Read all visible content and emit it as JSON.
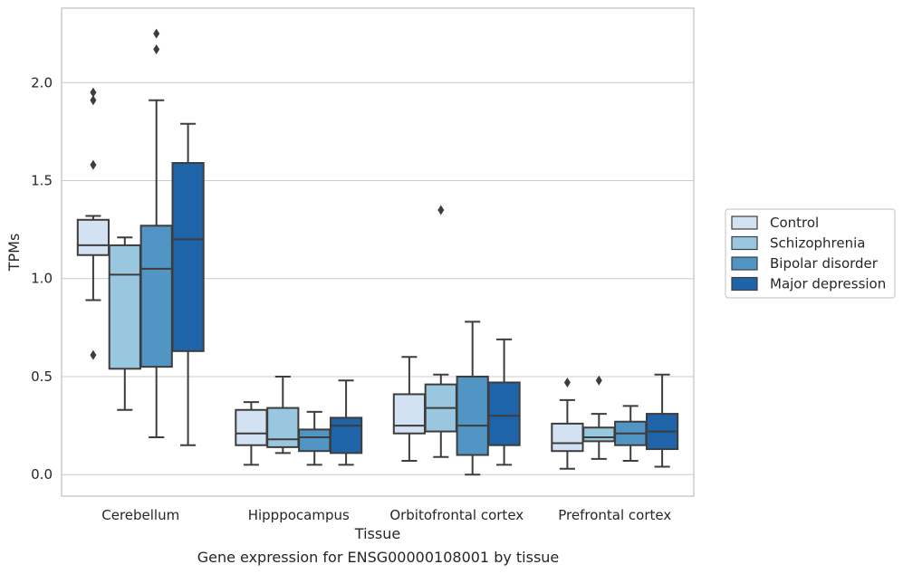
{
  "caption": "Gene expression for ENSG00000108001 by tissue",
  "chart_data": {
    "type": "box",
    "title": "",
    "xlabel": "Tissue",
    "ylabel": "TPMs",
    "ylim": [
      -0.11,
      2.38
    ],
    "yticks": [
      0.0,
      0.5,
      1.0,
      1.5,
      2.0
    ],
    "ytick_labels": [
      "0.0",
      "0.5",
      "1.0",
      "1.5",
      "2.0"
    ],
    "grid": "horizontal",
    "legend_position": "right",
    "categories": [
      "Cerebellum",
      "Hipppocampus",
      "Orbitofrontal cortex",
      "Prefrontal cortex"
    ],
    "series": [
      {
        "name": "Control",
        "color": "#d2e2f2",
        "boxes": [
          {
            "q1": 1.12,
            "median": 1.17,
            "q3": 1.3,
            "whisker_low": 0.89,
            "whisker_high": 1.32,
            "outliers": [
              1.95,
              1.91,
              1.58,
              0.61
            ]
          },
          {
            "q1": 0.15,
            "median": 0.21,
            "q3": 0.33,
            "whisker_low": 0.05,
            "whisker_high": 0.37,
            "outliers": []
          },
          {
            "q1": 0.21,
            "median": 0.25,
            "q3": 0.41,
            "whisker_low": 0.07,
            "whisker_high": 0.6,
            "outliers": []
          },
          {
            "q1": 0.12,
            "median": 0.16,
            "q3": 0.26,
            "whisker_low": 0.03,
            "whisker_high": 0.38,
            "outliers": [
              0.47
            ]
          }
        ]
      },
      {
        "name": "Schizophrenia",
        "color": "#9ac7e0",
        "boxes": [
          {
            "q1": 0.54,
            "median": 1.02,
            "q3": 1.17,
            "whisker_low": 0.33,
            "whisker_high": 1.21,
            "outliers": []
          },
          {
            "q1": 0.14,
            "median": 0.18,
            "q3": 0.34,
            "whisker_low": 0.11,
            "whisker_high": 0.5,
            "outliers": []
          },
          {
            "q1": 0.22,
            "median": 0.34,
            "q3": 0.46,
            "whisker_low": 0.09,
            "whisker_high": 0.51,
            "outliers": [
              1.35
            ]
          },
          {
            "q1": 0.17,
            "median": 0.19,
            "q3": 0.24,
            "whisker_low": 0.08,
            "whisker_high": 0.31,
            "outliers": [
              0.48
            ]
          }
        ]
      },
      {
        "name": "Bipolar disorder",
        "color": "#5195c5",
        "boxes": [
          {
            "q1": 0.55,
            "median": 1.05,
            "q3": 1.27,
            "whisker_low": 0.19,
            "whisker_high": 1.91,
            "outliers": [
              2.25,
              2.17
            ]
          },
          {
            "q1": 0.12,
            "median": 0.19,
            "q3": 0.23,
            "whisker_low": 0.05,
            "whisker_high": 0.32,
            "outliers": []
          },
          {
            "q1": 0.1,
            "median": 0.25,
            "q3": 0.5,
            "whisker_low": 0.0,
            "whisker_high": 0.78,
            "outliers": []
          },
          {
            "q1": 0.15,
            "median": 0.21,
            "q3": 0.27,
            "whisker_low": 0.07,
            "whisker_high": 0.35,
            "outliers": []
          }
        ]
      },
      {
        "name": "Major depression",
        "color": "#1f63a8",
        "boxes": [
          {
            "q1": 0.63,
            "median": 1.2,
            "q3": 1.59,
            "whisker_low": 0.15,
            "whisker_high": 1.79,
            "outliers": []
          },
          {
            "q1": 0.11,
            "median": 0.25,
            "q3": 0.29,
            "whisker_low": 0.05,
            "whisker_high": 0.48,
            "outliers": []
          },
          {
            "q1": 0.15,
            "median": 0.3,
            "q3": 0.47,
            "whisker_low": 0.05,
            "whisker_high": 0.69,
            "outliers": []
          },
          {
            "q1": 0.13,
            "median": 0.22,
            "q3": 0.31,
            "whisker_low": 0.04,
            "whisker_high": 0.51,
            "outliers": []
          }
        ]
      }
    ]
  }
}
